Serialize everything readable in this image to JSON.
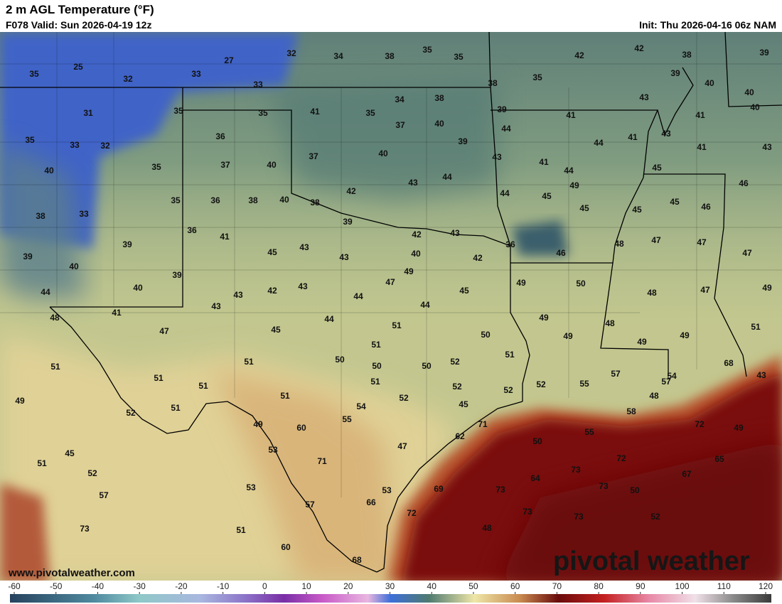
{
  "header": {
    "title": "2 m AGL Temperature (°F)",
    "valid": "F078 Valid: Sun 2026-04-19 12z",
    "init": "Init: Thu 2026-04-16 06z NAM"
  },
  "labels": [
    25,
    35,
    32,
    27,
    33,
    32,
    34,
    38,
    35,
    35,
    42,
    42,
    38,
    39,
    33,
    35,
    38,
    39,
    40,
    40,
    35,
    31,
    35,
    41,
    35,
    34,
    38,
    39,
    41,
    43,
    41,
    40,
    35,
    33,
    32,
    36,
    37,
    40,
    39,
    44,
    41,
    44,
    43,
    41,
    43,
    35,
    40,
    37,
    40,
    37,
    40,
    43,
    41,
    44,
    45,
    42,
    43,
    44,
    44,
    45,
    49,
    46,
    35,
    36,
    38,
    40,
    38,
    33,
    38,
    45,
    45,
    45,
    46,
    39,
    36,
    41,
    42,
    43,
    36,
    48,
    39,
    47,
    47,
    47,
    45,
    43,
    43,
    40,
    42,
    46,
    39,
    40,
    49,
    47,
    49,
    50,
    39,
    40,
    44,
    43,
    42,
    43,
    45,
    48,
    47,
    49,
    44,
    44,
    43,
    41,
    48,
    49,
    44,
    48,
    45,
    47,
    51,
    50,
    49,
    49,
    51,
    49,
    51,
    51,
    51,
    51,
    50,
    50,
    50,
    52,
    57,
    54,
    68,
    43,
    51,
    51,
    51,
    52,
    52,
    52,
    55,
    57,
    48,
    49,
    51,
    52,
    45,
    51,
    54,
    52,
    55,
    58,
    71,
    72,
    49,
    49,
    60,
    55,
    62,
    50,
    53,
    47,
    45,
    51,
    52,
    71,
    72,
    65,
    73,
    67,
    64,
    69,
    73,
    73,
    50,
    53,
    57,
    53,
    57,
    66,
    72,
    73,
    73,
    52,
    73,
    48,
    51,
    60,
    68
  ],
  "footer": {
    "url": "www.pivotalweather.com",
    "brand": "pivotal weather"
  },
  "colorbar": {
    "ticks": [
      -60,
      -50,
      -40,
      -30,
      -20,
      -10,
      0,
      10,
      20,
      30,
      40,
      50,
      60,
      70,
      80,
      90,
      100,
      110,
      120
    ]
  }
}
